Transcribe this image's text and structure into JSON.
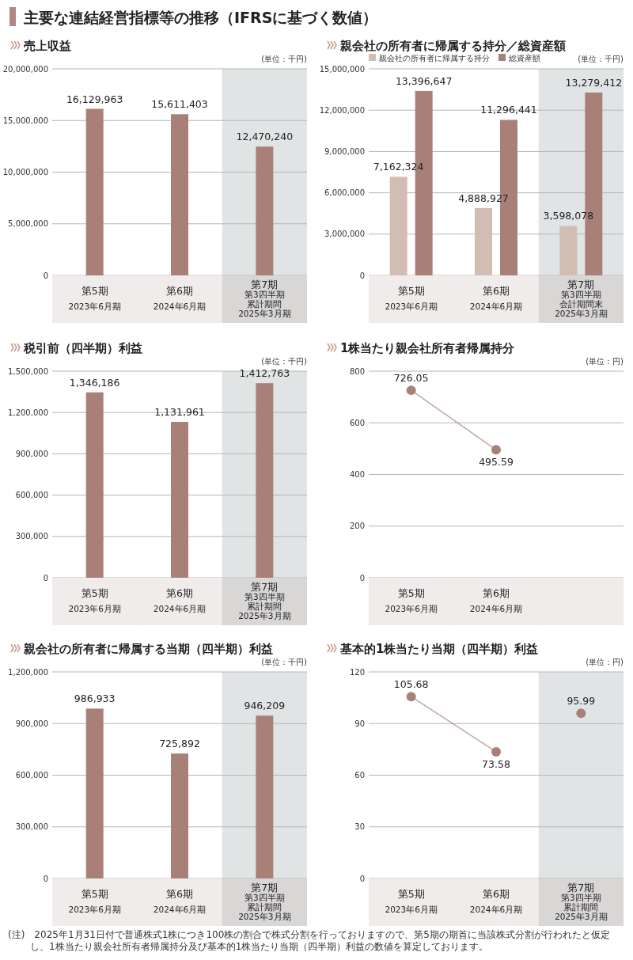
{
  "chart_data": [
    {
      "type": "other",
      "title": "主要な連結経営指標等の推移（IFRSに基づく数値）",
      "annotations": [
        "(注)　2025年1月31日付で普通株式1株につき100株の割合で株式分割を行っておりますので、第5期の期首に当該株式分割が行われたと仮定し、1株当たり親会社所有者帰属持分及び基本的1株当たり当期（四半期）利益の数値を算定しております。"
      ]
    },
    {
      "type": "bar",
      "title": "売上収益",
      "categories": [
        "第5期\n2023年6月期",
        "第6期\n2024年6月期",
        "第7期第3四半期累計期間\n2025年3月期"
      ],
      "values": [
        16129963,
        15611403,
        12470240
      ],
      "value_labels": [
        "16,129,963",
        "15,611,403",
        "12,470,240"
      ],
      "color": "#a98078",
      "ylim": [
        0,
        20000000
      ],
      "yticks": [
        0,
        {
          "value": 5000000,
          "label": "5,000,000"
        },
        {
          "value": 10000000,
          "label": "10,000,000"
        },
        {
          "value": 15000000,
          "label": "15,000,000"
        },
        {
          "value": 20000000,
          "label": "20,000,000"
        }
      ],
      "grid": "y",
      "annotations": [
        "(単位：千円)"
      ],
      "bands": [
        {
          "axis": "x",
          "from": "第7期第3四半期累計期間\n2025年3月期",
          "to": "第7期第3四半期累計期間\n2025年3月期",
          "color": "#e1e4e5"
        }
      ]
    },
    {
      "type": "bar",
      "title": "親会社の所有者に帰属する持分／総資産額",
      "categories": [
        "第5期\n2023年6月期",
        "第6期\n2024年6月期",
        "第7期第3四半期会計期間末\n2025年3月期"
      ],
      "series": [
        {
          "name": "親会社の所有者に帰属する持分",
          "color": "#d2bdb5",
          "values": [
            7162324,
            4888927,
            3598078
          ],
          "value_labels": [
            "7,162,324",
            "4,888,927",
            "3,598,078"
          ]
        },
        {
          "name": "総資産額",
          "color": "#a98078",
          "values": [
            13396647,
            11296441,
            13279412
          ],
          "value_labels": [
            "13,396,647",
            "11,296,441",
            "13,279,412"
          ]
        }
      ],
      "ylim": [
        0,
        15000000
      ],
      "yticks": [
        0,
        {
          "value": 3000000,
          "label": "3,000,000"
        },
        {
          "value": 6000000,
          "label": "6,000,000"
        },
        {
          "value": 9000000,
          "label": "9,000,000"
        },
        {
          "value": 12000000,
          "label": "12,000,000"
        },
        {
          "value": 15000000,
          "label": "15,000,000"
        }
      ],
      "grid": "y",
      "legend": "top",
      "annotations": [
        "(単位：千円)"
      ],
      "bands": [
        {
          "axis": "x",
          "from": "第7期第3四半期会計期間末\n2025年3月期",
          "to": "第7期第3四半期会計期間末\n2025年3月期",
          "color": "#e1e4e5"
        }
      ]
    },
    {
      "type": "bar",
      "title": "税引前（四半期）利益",
      "categories": [
        "第5期\n2023年6月期",
        "第6期\n2024年6月期",
        "第7期第3四半期累計期間\n2025年3月期"
      ],
      "values": [
        1346186,
        1131961,
        1412763
      ],
      "value_labels": [
        "1,346,186",
        "1,131,961",
        "1,412,763"
      ],
      "color": "#a98078",
      "ylim": [
        0,
        1500000
      ],
      "yticks": [
        0,
        {
          "value": 300000,
          "label": "300,000"
        },
        {
          "value": 600000,
          "label": "600,000"
        },
        {
          "value": 900000,
          "label": "900,000"
        },
        {
          "value": 1200000,
          "label": "1,200,000"
        },
        {
          "value": 1500000,
          "label": "1,500,000"
        }
      ],
      "grid": "y",
      "annotations": [
        "(単位：千円)"
      ],
      "bands": [
        {
          "axis": "x",
          "from": "第7期第3四半期累計期間\n2025年3月期",
          "to": "第7期第3四半期累計期間\n2025年3月期",
          "color": "#e1e4e5"
        }
      ]
    },
    {
      "type": "line",
      "title": "1株当たり親会社所有者帰属持分",
      "categories": [
        "第5期\n2023年6月期",
        "第6期\n2024年6月期",
        null
      ],
      "values": [
        726.05,
        495.59,
        null
      ],
      "color": "#a98078",
      "marker": "circle",
      "ylim": [
        0,
        800
      ],
      "yticks": [
        0,
        200,
        400,
        600,
        800
      ],
      "grid": "y",
      "data_labels": true,
      "annotations": [
        "(単位：円)"
      ]
    },
    {
      "type": "bar",
      "title": "親会社の所有者に帰属する当期（四半期）利益",
      "categories": [
        "第5期\n2023年6月期",
        "第6期\n2024年6月期",
        "第7期第3四半期累計期間\n2025年3月期"
      ],
      "values": [
        986933,
        725892,
        946209
      ],
      "value_labels": [
        "986,933",
        "725,892",
        "946,209"
      ],
      "color": "#a98078",
      "ylim": [
        0,
        1200000
      ],
      "yticks": [
        0,
        {
          "value": 300000,
          "label": "300,000"
        },
        {
          "value": 600000,
          "label": "600,000"
        },
        {
          "value": 900000,
          "label": "900,000"
        },
        {
          "value": 1200000,
          "label": "1,200,000"
        }
      ],
      "grid": "y",
      "annotations": [
        "(単位：千円)"
      ],
      "bands": [
        {
          "axis": "x",
          "from": "第7期第3四半期累計期間\n2025年3月期",
          "to": "第7期第3四半期累計期間\n2025年3月期",
          "color": "#e1e4e5"
        }
      ]
    },
    {
      "type": "line",
      "title": "基本的1株当たり当期（四半期）利益",
      "categories": [
        "第5期\n2023年6月期",
        "第6期\n2024年6月期",
        "第7期第3四半期累計期間\n2025年3月期"
      ],
      "series": [
        {
          "type": "line",
          "color": "#a98078",
          "values": [
            105.68,
            73.58,
            null
          ]
        },
        {
          "type": "scatter",
          "color": "#a98078",
          "values": [
            null,
            null,
            95.99
          ]
        }
      ],
      "marker": "circle",
      "ylim": [
        0,
        120
      ],
      "yticks": [
        0,
        30,
        60,
        90,
        120
      ],
      "grid": "y",
      "data_labels": true,
      "annotations": [
        "(単位：円)"
      ],
      "bands": [
        {
          "axis": "x",
          "from": "第7期第3四半期累計期間\n2025年3月期",
          "to": "第7期第3四半期累計期間\n2025年3月期",
          "color": "#e1e4e5"
        }
      ]
    }
  ]
}
